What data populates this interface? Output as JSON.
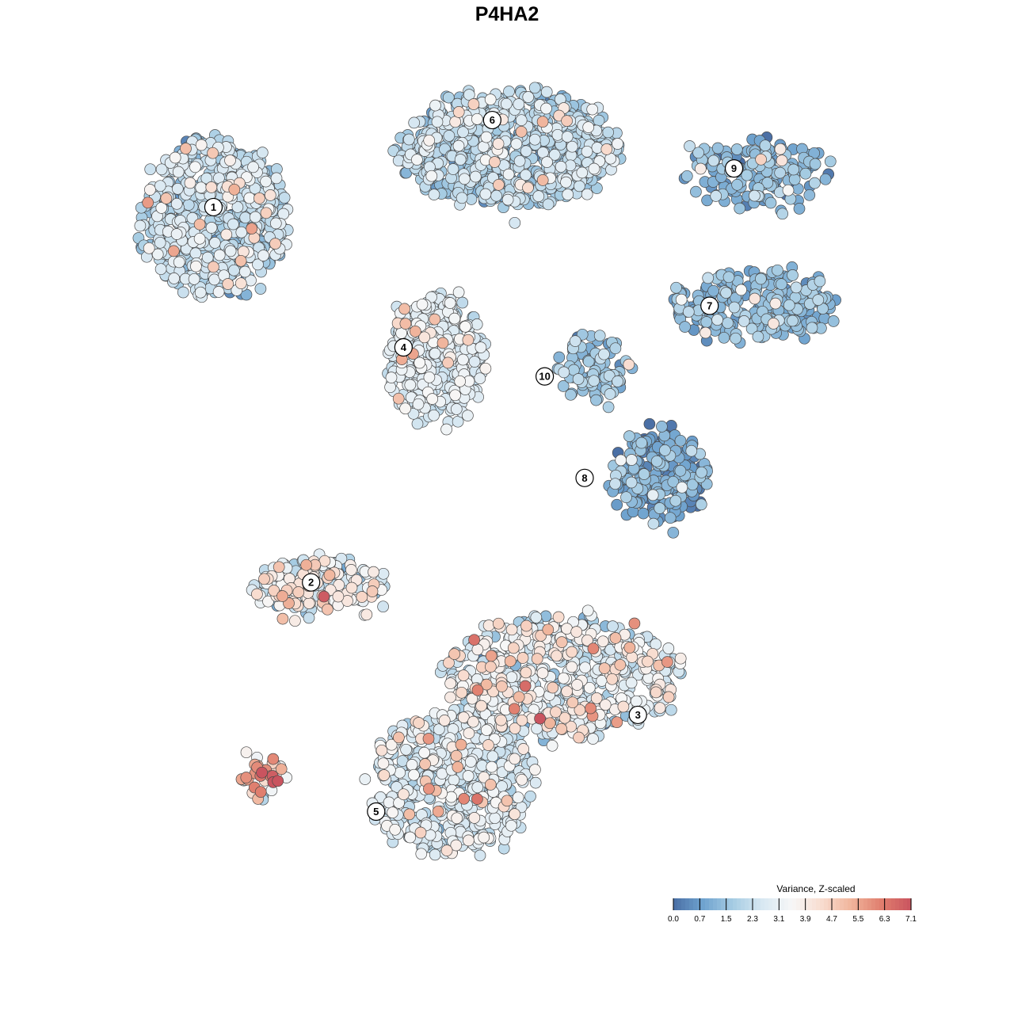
{
  "chart_data": {
    "type": "scatter",
    "title": "P4HA2",
    "xlabel": "",
    "ylabel": "",
    "grid": false,
    "legend_position": "bottom-right",
    "colorbar": {
      "title": "Variance, Z-scaled",
      "ticks": [
        "0.0",
        "0.7",
        "1.5",
        "2.3",
        "3.1",
        "3.9",
        "4.7",
        "5.5",
        "6.3",
        "7.1"
      ],
      "range": [
        0.0,
        7.1
      ],
      "colors": [
        "#4a6fa5",
        "#6fa3cf",
        "#a6cce3",
        "#d8e8f2",
        "#f7f7f7",
        "#f8dccf",
        "#f0b49b",
        "#e07e6e",
        "#c9545f"
      ]
    },
    "clusters": [
      {
        "id": "1",
        "x": -39.5,
        "y": 41.5,
        "spread": [
          8.5,
          7.0
        ],
        "n": 700,
        "mean": 2.1,
        "sd": 0.7
      },
      {
        "id": "6",
        "x": 0.5,
        "y": 48.5,
        "spread": [
          13.0,
          5.0
        ],
        "n": 800,
        "mean": 2.0,
        "sd": 0.6
      },
      {
        "id": "4",
        "x": -9.5,
        "y": 27.0,
        "spread": [
          5.5,
          5.5
        ],
        "n": 380,
        "mean": 2.8,
        "sd": 0.4
      },
      {
        "id": "10",
        "x": 11.5,
        "y": 26.0,
        "spread": [
          4.0,
          3.0
        ],
        "n": 90,
        "mean": 1.6,
        "sd": 0.5
      },
      {
        "id": "9",
        "x": 34.0,
        "y": 46.0,
        "spread": [
          8.5,
          3.0
        ],
        "n": 160,
        "mean": 1.3,
        "sd": 0.5
      },
      {
        "id": "7",
        "x": 33.5,
        "y": 32.5,
        "spread": [
          9.5,
          3.0
        ],
        "n": 260,
        "mean": 1.3,
        "sd": 0.5
      },
      {
        "id": "8",
        "x": 20.5,
        "y": 14.5,
        "spread": [
          5.5,
          4.0
        ],
        "n": 210,
        "mean": 1.0,
        "sd": 0.6
      },
      {
        "id": "2",
        "x": -25.5,
        "y": 3.5,
        "spread": [
          8.0,
          2.5
        ],
        "n": 190,
        "mean": 3.1,
        "sd": 1.1
      },
      {
        "id": "3",
        "x": 7.5,
        "y": -6.0,
        "spread": [
          14.0,
          5.5
        ],
        "n": 600,
        "mean": 3.0,
        "sd": 0.9
      },
      {
        "id": "5",
        "x": -7.5,
        "y": -17.0,
        "spread": [
          9.5,
          6.5
        ],
        "n": 520,
        "mean": 2.7,
        "sd": 0.6
      },
      {
        "id": "small",
        "x": -33.0,
        "y": -16.5,
        "spread": [
          3.0,
          1.5
        ],
        "n": 40,
        "mean": 5.0,
        "sd": 1.5
      }
    ],
    "labels": [
      {
        "text": "1",
        "x": -39.7,
        "y": 42.5
      },
      {
        "text": "6",
        "x": -2.0,
        "y": 51.5
      },
      {
        "text": "9",
        "x": 30.7,
        "y": 46.5
      },
      {
        "text": "4",
        "x": -14.0,
        "y": 28.0
      },
      {
        "text": "10",
        "x": 5.1,
        "y": 25.0
      },
      {
        "text": "7",
        "x": 27.4,
        "y": 32.3
      },
      {
        "text": "8",
        "x": 10.5,
        "y": 14.5
      },
      {
        "text": "2",
        "x": -26.5,
        "y": 3.7
      },
      {
        "text": "3",
        "x": 17.7,
        "y": -10.0
      },
      {
        "text": "5",
        "x": -17.7,
        "y": -20.0
      }
    ],
    "xlim": [
      -60,
      60
    ],
    "ylim": [
      -27,
      59
    ]
  }
}
